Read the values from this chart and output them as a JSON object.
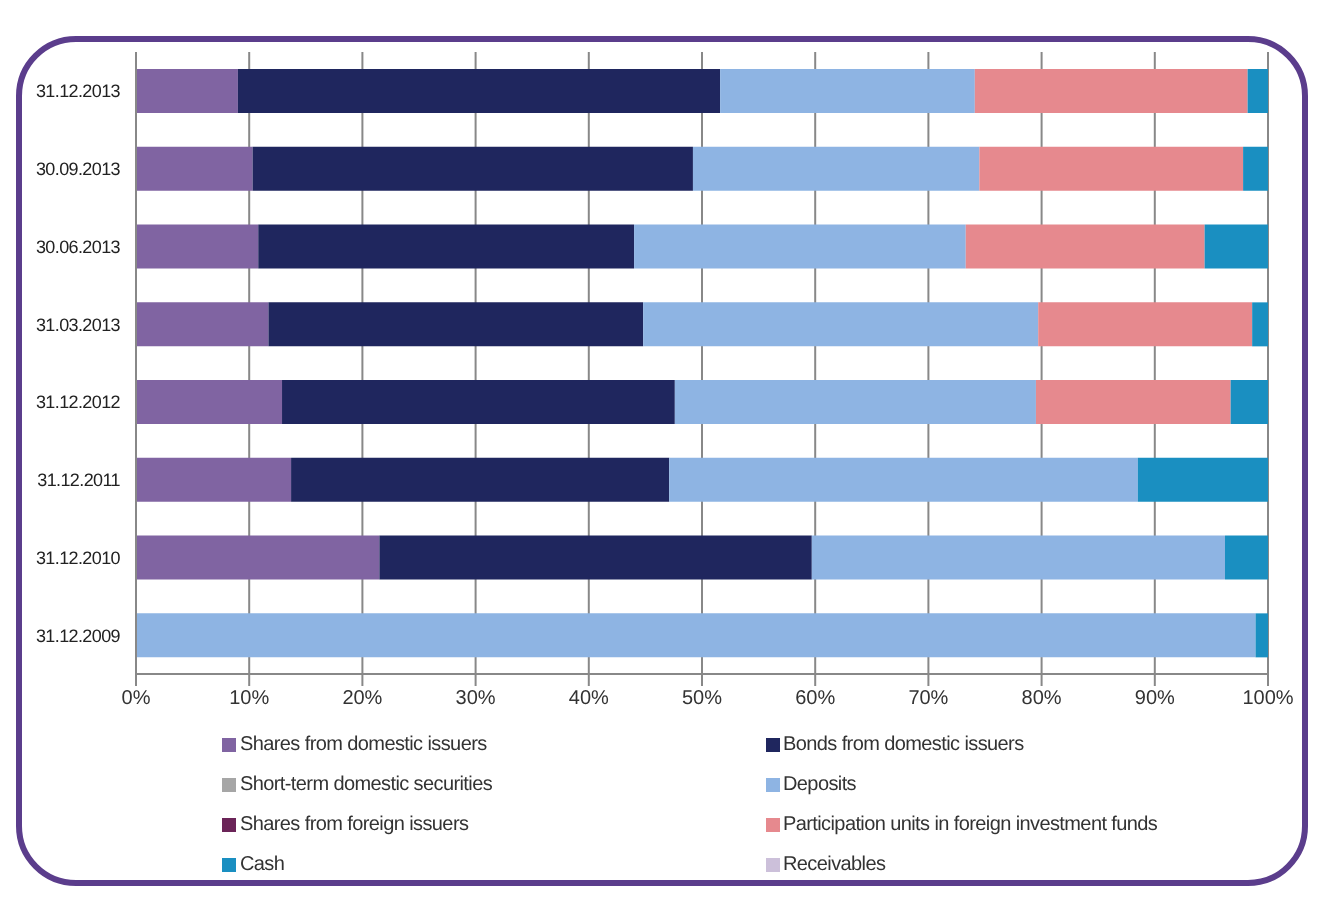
{
  "chart_data": {
    "type": "bar",
    "orientation": "horizontal",
    "stacked": true,
    "categories": [
      "31.12.2013",
      "30.09.2013",
      "30.06.2013",
      "31.03.2013",
      "31.12.2012",
      "31.12.2011",
      "31.12.2010",
      "31.12.2009"
    ],
    "series": [
      {
        "name": "Shares from domestic issuers",
        "color": "#8064a2",
        "values": [
          9.0,
          10.3,
          10.8,
          11.7,
          12.9,
          13.7,
          21.5,
          0
        ]
      },
      {
        "name": "Bonds from domestic issuers",
        "color": "#1f265e",
        "values": [
          42.6,
          38.9,
          33.2,
          33.1,
          34.7,
          33.4,
          38.2,
          0
        ]
      },
      {
        "name": "Short-term domestic securities",
        "color": "#a6a6a6",
        "values": [
          0,
          0,
          0,
          0,
          0,
          0,
          0,
          0
        ]
      },
      {
        "name": "Deposits",
        "color": "#8eb4e3",
        "values": [
          22.5,
          25.3,
          29.3,
          34.9,
          31.9,
          41.4,
          36.5,
          98.9
        ]
      },
      {
        "name": "Shares from foreign issuers",
        "color": "#6b2458",
        "values": [
          0,
          0,
          0,
          0,
          0,
          0,
          0,
          0
        ]
      },
      {
        "name": "Participation units in foreign investment funds",
        "color": "#e6898e",
        "values": [
          24.1,
          23.3,
          21.1,
          18.9,
          17.2,
          0,
          0,
          0
        ]
      },
      {
        "name": "Cash",
        "color": "#1a8fc1",
        "values": [
          1.8,
          2.2,
          5.6,
          1.4,
          3.3,
          11.5,
          3.8,
          1.1
        ]
      },
      {
        "name": "Receivables",
        "color": "#ccc0da",
        "values": [
          0,
          0,
          0,
          0,
          0,
          0,
          0,
          0
        ]
      }
    ],
    "xlim": [
      0,
      100
    ],
    "xticks": [
      {
        "value": 0,
        "label": "0%"
      },
      {
        "value": 10,
        "label": "10%"
      },
      {
        "value": 20,
        "label": "20%"
      },
      {
        "value": 30,
        "label": "30%"
      },
      {
        "value": 40,
        "label": "40%"
      },
      {
        "value": 50,
        "label": "50%"
      },
      {
        "value": 60,
        "label": "60%"
      },
      {
        "value": 70,
        "label": "70%"
      },
      {
        "value": 80,
        "label": "80%"
      },
      {
        "value": 90,
        "label": "90%"
      },
      {
        "value": 100,
        "label": "100%"
      }
    ],
    "grid": "x",
    "legend": "bottom"
  }
}
